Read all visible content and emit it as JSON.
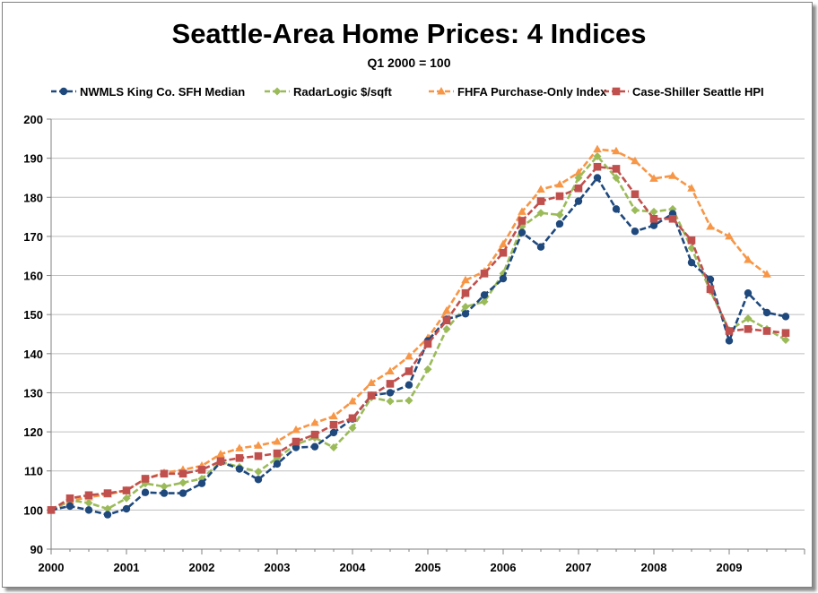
{
  "chart_data": {
    "type": "line",
    "title": "Seattle-Area Home Prices: 4 Indices",
    "subtitle": "Q1 2000 = 100",
    "xlabel": "",
    "ylabel": "",
    "xlim": [
      2000,
      2010
    ],
    "ylim": [
      90,
      200
    ],
    "yticks": [
      "90",
      "100",
      "110",
      "120",
      "130",
      "140",
      "150",
      "160",
      "170",
      "180",
      "190",
      "200"
    ],
    "xticks": [
      "2000",
      "2001",
      "2002",
      "2003",
      "2004",
      "2005",
      "2006",
      "2007",
      "2008",
      "2009"
    ],
    "grid": "horizontal",
    "legend": "top",
    "series": [
      {
        "name": "NWMLS King Co. SFH Median",
        "color": "#1f497d",
        "marker": "circle",
        "x": [
          2000.0,
          2000.25,
          2000.5,
          2000.75,
          2001.0,
          2001.25,
          2001.5,
          2001.75,
          2002.0,
          2002.25,
          2002.5,
          2002.75,
          2003.0,
          2003.25,
          2003.5,
          2003.75,
          2004.0,
          2004.25,
          2004.5,
          2004.75,
          2005.0,
          2005.25,
          2005.5,
          2005.75,
          2006.0,
          2006.25,
          2006.5,
          2006.75,
          2007.0,
          2007.25,
          2007.5,
          2007.75,
          2008.0,
          2008.25,
          2008.5,
          2008.75,
          2009.0,
          2009.25,
          2009.5,
          2009.75
        ],
        "values": [
          100,
          101,
          100,
          98.8,
          100.3,
          104.5,
          104.3,
          104.3,
          106.8,
          112.3,
          110.5,
          107.8,
          111.8,
          116,
          116.2,
          119.8,
          123.3,
          129.3,
          130,
          132,
          143.3,
          148.8,
          150.2,
          155,
          159.2,
          171,
          167.3,
          173.2,
          179,
          185,
          177,
          171.3,
          172.8,
          175.8,
          163.3,
          159,
          143.3,
          155.5,
          150.5,
          149.5
        ]
      },
      {
        "name": "RadarLogic $/sqft",
        "color": "#9bbb59",
        "marker": "diamond",
        "x": [
          2000.0,
          2000.25,
          2000.5,
          2000.75,
          2001.0,
          2001.25,
          2001.5,
          2001.75,
          2002.0,
          2002.25,
          2002.5,
          2002.75,
          2003.0,
          2003.25,
          2003.5,
          2003.75,
          2004.0,
          2004.25,
          2004.5,
          2004.75,
          2005.0,
          2005.25,
          2005.5,
          2005.75,
          2006.0,
          2006.25,
          2006.5,
          2006.75,
          2007.0,
          2007.25,
          2007.5,
          2007.75,
          2008.0,
          2008.25,
          2008.5,
          2008.75,
          2009.0,
          2009.25,
          2009.5,
          2009.75
        ],
        "values": [
          100,
          102.5,
          101.8,
          100.3,
          103,
          106.8,
          106,
          107,
          108,
          112.3,
          111,
          109.8,
          113.3,
          116.8,
          118.5,
          116,
          121,
          128.8,
          127.8,
          128,
          136,
          146.3,
          152,
          153.3,
          160.5,
          172.5,
          176,
          175.5,
          185,
          190.5,
          185,
          176.7,
          176.3,
          177,
          167,
          156,
          146,
          149,
          146.3,
          143.5
        ]
      },
      {
        "name": "FHFA Purchase-Only Index",
        "color": "#f79646",
        "marker": "triangle",
        "x": [
          2000.0,
          2000.25,
          2000.5,
          2000.75,
          2001.0,
          2001.25,
          2001.5,
          2001.75,
          2002.0,
          2002.25,
          2002.5,
          2002.75,
          2003.0,
          2003.25,
          2003.5,
          2003.75,
          2004.0,
          2004.25,
          2004.5,
          2004.75,
          2005.0,
          2005.25,
          2005.5,
          2005.75,
          2006.0,
          2006.25,
          2006.5,
          2006.75,
          2007.0,
          2007.25,
          2007.5,
          2007.75,
          2008.0,
          2008.25,
          2008.5,
          2008.75,
          2009.0,
          2009.25,
          2009.5
        ],
        "values": [
          100,
          102.3,
          103.3,
          104,
          105,
          108,
          109.5,
          110.3,
          111.3,
          114.3,
          115.8,
          116.5,
          117.5,
          120.5,
          122.3,
          124,
          127.8,
          132.5,
          135.5,
          139.3,
          144,
          151,
          158.8,
          161,
          168,
          176.3,
          182,
          183.3,
          186.3,
          192.3,
          191.8,
          189.3,
          184.8,
          185.5,
          182.3,
          172.5,
          170,
          164,
          160.3
        ]
      },
      {
        "name": "Case-Shiller Seattle HPI",
        "color": "#c0504d",
        "marker": "square",
        "x": [
          2000.0,
          2000.25,
          2000.5,
          2000.75,
          2001.0,
          2001.25,
          2001.5,
          2001.75,
          2002.0,
          2002.25,
          2002.5,
          2002.75,
          2003.0,
          2003.25,
          2003.5,
          2003.75,
          2004.0,
          2004.25,
          2004.5,
          2004.75,
          2005.0,
          2005.25,
          2005.5,
          2005.75,
          2006.0,
          2006.25,
          2006.5,
          2006.75,
          2007.0,
          2007.25,
          2007.5,
          2007.75,
          2008.0,
          2008.25,
          2008.5,
          2008.75,
          2009.0,
          2009.25,
          2009.5,
          2009.75
        ],
        "values": [
          100,
          103,
          103.8,
          104.3,
          105,
          108,
          109.3,
          109.3,
          110.3,
          112.5,
          113.3,
          113.8,
          114.5,
          117.5,
          119.3,
          121.8,
          123.5,
          129.3,
          132.3,
          135.5,
          142.5,
          148.5,
          155.5,
          160.5,
          165.8,
          174,
          179,
          180.3,
          182.3,
          187.8,
          187.3,
          180.8,
          174.5,
          174.5,
          169,
          156.5,
          145.8,
          146.3,
          145.8,
          145.3
        ]
      }
    ]
  }
}
